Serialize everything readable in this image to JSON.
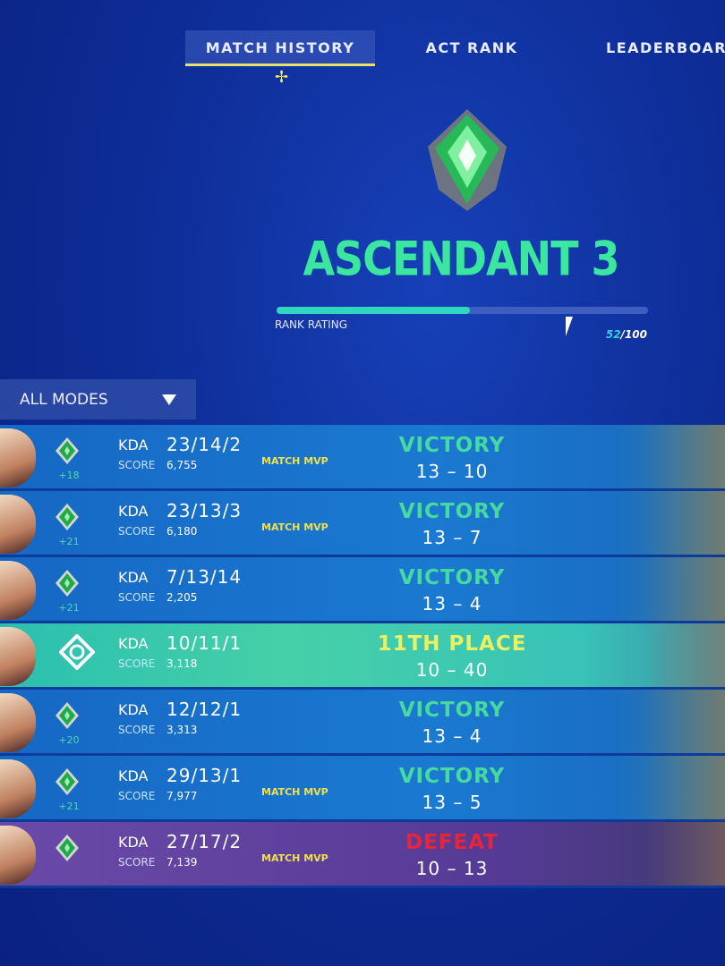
{
  "tabs": [
    {
      "label": "MATCH HISTORY",
      "active": true
    },
    {
      "label": "ACT RANK",
      "active": false
    },
    {
      "label": "LEADERBOARD",
      "active": false
    }
  ],
  "rank": {
    "name": "ASCENDANT 3",
    "rating_label": "RANK RATING",
    "rating_current": "52",
    "rating_sep": "/",
    "rating_max": "100",
    "rating_fraction": 0.52
  },
  "colors": {
    "victory": "#46d9a0",
    "defeat": "#e8243a",
    "placement": "#eaf060",
    "mvp": "#f0e04a",
    "rank_green": "#3be69e"
  },
  "filter": {
    "label": "ALL MODES"
  },
  "matches": [
    {
      "type": "win",
      "rr": "+18",
      "kda_label": "KDA",
      "kda": "23/14/2",
      "score_label": "SCORE",
      "score": "6,755",
      "mvp": "MATCH MVP",
      "result": "VICTORY",
      "final": "13 – 10"
    },
    {
      "type": "win",
      "rr": "+21",
      "kda_label": "KDA",
      "kda": "23/13/3",
      "score_label": "SCORE",
      "score": "6,180",
      "mvp": "MATCH MVP",
      "result": "VICTORY",
      "final": "13 – 7"
    },
    {
      "type": "win",
      "rr": "+21",
      "kda_label": "KDA",
      "kda": "7/13/14",
      "score_label": "SCORE",
      "score": "2,205",
      "mvp": "",
      "result": "VICTORY",
      "final": "13 – 4"
    },
    {
      "type": "ffa",
      "rr": "",
      "kda_label": "KDA",
      "kda": "10/11/1",
      "score_label": "SCORE",
      "score": "3,118",
      "mvp": "",
      "result": "11TH PLACE",
      "final": "10 – 40"
    },
    {
      "type": "win",
      "rr": "+20",
      "kda_label": "KDA",
      "kda": "12/12/1",
      "score_label": "SCORE",
      "score": "3,313",
      "mvp": "",
      "result": "VICTORY",
      "final": "13 – 4"
    },
    {
      "type": "win",
      "rr": "+21",
      "kda_label": "KDA",
      "kda": "29/13/1",
      "score_label": "SCORE",
      "score": "7,977",
      "mvp": "MATCH MVP",
      "result": "VICTORY",
      "final": "13 – 5"
    },
    {
      "type": "defeat",
      "rr": "",
      "kda_label": "KDA",
      "kda": "27/17/2",
      "score_label": "SCORE",
      "score": "7,139",
      "mvp": "MATCH MVP",
      "result": "DEFEAT",
      "final": "10 – 13"
    }
  ]
}
